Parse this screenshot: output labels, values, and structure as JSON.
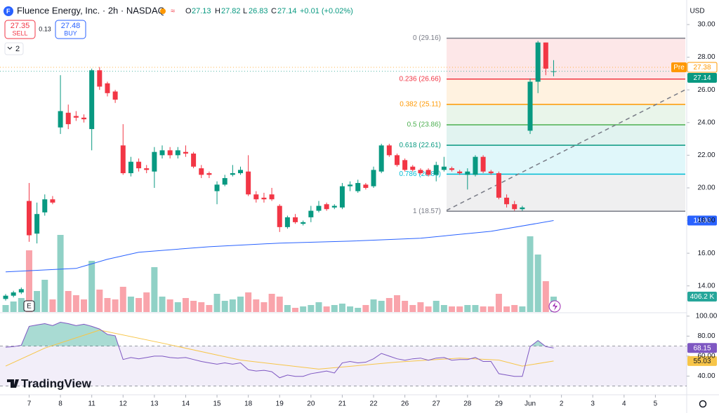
{
  "header": {
    "symbol": "Fluence Energy, Inc. · 2h · NASDAQ",
    "o": "O",
    "h": "H",
    "l": "L",
    "c": "C",
    "change": "+0.01 (+0.02%)",
    "sell_price": "27.35",
    "sell": "SELL",
    "spread": "0.13",
    "buy_price": "27.48",
    "buy": "BUY",
    "indicators": "2",
    "currency": "USD",
    "brand": "TradingView",
    "earnings": "E"
  },
  "chart_data": [
    {
      "type": "candlestick",
      "up_color": "#089981",
      "down_color": "#f23645",
      "x": [
        0,
        1,
        2,
        3,
        4,
        5,
        6,
        7,
        8,
        9,
        10,
        11,
        12,
        13,
        14,
        15,
        16,
        17,
        18,
        19,
        20,
        21,
        22,
        23,
        24,
        25,
        26,
        27,
        28,
        29,
        30,
        31,
        32,
        33,
        34,
        35,
        36,
        37,
        38,
        39,
        40,
        41,
        42,
        43,
        44,
        45,
        46,
        47,
        48,
        49,
        50,
        51,
        52,
        53,
        54,
        55,
        56,
        57,
        58,
        59,
        60,
        61,
        62,
        63,
        64,
        65,
        66,
        67,
        68,
        69,
        70
      ],
      "open": [
        13.2,
        13.4,
        13.6,
        19.2,
        17.2,
        18.5,
        19.3,
        23.7,
        24.6,
        24.4,
        24.3,
        23.6,
        27.2,
        26.4,
        25.9,
        22.6,
        20.9,
        21.6,
        21.2,
        21.0,
        22.0,
        22.3,
        22.0,
        22.2,
        22.1,
        21.2,
        20.9,
        19.8,
        20.2,
        20.8,
        20.9,
        21.0,
        19.6,
        19.4,
        19.6,
        18.9,
        17.6,
        18.2,
        17.8,
        18.2,
        18.6,
        19.0,
        18.8,
        18.8,
        20.1,
        19.8,
        20.2,
        20.1,
        21.0,
        22.6,
        22.0,
        21.7,
        21.3,
        21.1,
        21.1,
        20.8,
        21.1,
        21.2,
        21.0,
        20.8,
        20.8,
        21.9,
        21.0,
        20.9,
        19.4,
        19.0,
        18.7,
        23.5,
        26.5,
        28.9,
        27.13
      ],
      "high": [
        13.5,
        13.7,
        13.9,
        20.3,
        19.1,
        19.6,
        19.5,
        26.9,
        25.1,
        24.7,
        24.5,
        27.3,
        27.4,
        26.5,
        26.0,
        23.9,
        21.9,
        21.8,
        21.4,
        22.5,
        22.6,
        22.5,
        22.5,
        22.6,
        22.2,
        21.4,
        21.0,
        20.4,
        20.8,
        21.4,
        21.3,
        22.0,
        19.8,
        19.7,
        20.0,
        19.0,
        18.3,
        18.4,
        18.0,
        18.9,
        19.2,
        19.1,
        19.0,
        20.3,
        20.4,
        20.5,
        20.3,
        21.3,
        22.7,
        22.7,
        22.1,
        21.8,
        21.4,
        21.2,
        21.2,
        21.6,
        21.9,
        21.3,
        21.1,
        21.2,
        22.0,
        22.0,
        21.1,
        21.0,
        19.6,
        19.2,
        18.9,
        26.7,
        29.0,
        28.9,
        27.82
      ],
      "low": [
        13.1,
        13.3,
        13.5,
        16.7,
        16.6,
        18.3,
        19.0,
        23.3,
        23.6,
        24.1,
        24.0,
        22.3,
        26.0,
        25.6,
        25.2,
        20.8,
        20.7,
        21.0,
        20.9,
        20.0,
        21.8,
        21.8,
        21.8,
        21.9,
        21.2,
        20.6,
        20.6,
        19.0,
        20.1,
        20.7,
        20.8,
        19.5,
        19.1,
        19.1,
        19.2,
        17.3,
        17.5,
        17.8,
        17.7,
        17.9,
        18.5,
        18.6,
        18.7,
        18.7,
        19.8,
        19.7,
        19.9,
        20.0,
        20.9,
        21.9,
        21.3,
        21.0,
        21.0,
        20.8,
        20.7,
        20.4,
        21.0,
        21.0,
        20.8,
        19.9,
        20.7,
        20.9,
        20.8,
        19.3,
        18.8,
        18.6,
        18.6,
        23.3,
        25.8,
        26.9,
        26.83
      ],
      "close": [
        13.4,
        13.6,
        13.8,
        17.1,
        18.4,
        19.3,
        19.1,
        24.7,
        23.9,
        24.3,
        24.2,
        27.2,
        26.2,
        25.8,
        25.4,
        20.9,
        21.6,
        21.2,
        21.1,
        22.2,
        22.3,
        22.0,
        22.3,
        22.1,
        21.3,
        20.8,
        20.8,
        20.2,
        20.6,
        20.9,
        21.1,
        19.6,
        19.3,
        19.3,
        19.3,
        17.6,
        18.2,
        17.9,
        17.9,
        18.6,
        18.9,
        18.7,
        18.9,
        20.1,
        20.2,
        20.3,
        20.0,
        21.1,
        22.6,
        22.0,
        21.4,
        21.1,
        21.1,
        20.9,
        20.8,
        21.4,
        21.3,
        21.1,
        20.9,
        21.0,
        21.9,
        21.0,
        20.9,
        19.4,
        19.0,
        18.7,
        18.8,
        26.5,
        28.9,
        27.3,
        27.14
      ],
      "close_label": "27.14",
      "volume": {
        "ylim": [
          0,
          7715
        ],
        "color": "#26a69a",
        "values": [
          185,
          278,
          370,
          1628,
          555,
          851,
          333,
          2035,
          555,
          444,
          333,
          1351,
          592,
          370,
          333,
          666,
          407,
          370,
          518,
          1184,
          407,
          333,
          259,
          370,
          296,
          259,
          185,
          481,
          296,
          333,
          407,
          518,
          333,
          259,
          481,
          407,
          185,
          111,
          148,
          185,
          259,
          148,
          185,
          222,
          148,
          111,
          185,
          333,
          296,
          370,
          444,
          296,
          185,
          259,
          148,
          296,
          185,
          148,
          148,
          185,
          185,
          148,
          148,
          481,
          148,
          185,
          148,
          1998,
          1517,
          814,
          406.2
        ],
        "value_labels": [
          null,
          null,
          null,
          null,
          null,
          null,
          null,
          null,
          null,
          null,
          null,
          null,
          null,
          null,
          null,
          null,
          null,
          null,
          null,
          null,
          null,
          null,
          null,
          null,
          null,
          null,
          null,
          null,
          null,
          null,
          null,
          null,
          null,
          null,
          null,
          null,
          null,
          null,
          null,
          null,
          null,
          null,
          null,
          null,
          null,
          null,
          null,
          null,
          null,
          null,
          null,
          null,
          null,
          null,
          null,
          null,
          null,
          null,
          null,
          null,
          null,
          null,
          null,
          null,
          null,
          null,
          null,
          null,
          null,
          null,
          "406.2 K"
        ]
      },
      "ma": {
        "color": "#2962ff",
        "x": [
          0,
          9,
          13,
          17,
          26,
          35,
          44,
          53,
          62,
          70
        ],
        "values": [
          14.86,
          15.07,
          15.63,
          16.06,
          16.4,
          16.62,
          16.74,
          16.92,
          17.34,
          18
        ],
        "value_labels": [
          null,
          null,
          null,
          null,
          null,
          null,
          null,
          null,
          null,
          "18.00"
        ]
      },
      "pre_market": {
        "label": "Pre",
        "value": 27.38,
        "color": "#ff9800"
      },
      "fib": [
        {
          "value": 29.16,
          "label": "0 (29.16)",
          "color": "#787b86",
          "fill": "rgba(242,54,69,0.12)"
        },
        {
          "value": 26.66,
          "label": "0.236 (26.66)",
          "color": "#f23645",
          "fill": "rgba(255,152,0,0.12)"
        },
        {
          "value": 25.11,
          "label": "0.382 (25.11)",
          "color": "#ff9800",
          "fill": "rgba(76,175,80,0.12)"
        },
        {
          "value": 23.86,
          "label": "0.5 (23.86)",
          "color": "#4caf50",
          "fill": "rgba(8,153,129,0.12)"
        },
        {
          "value": 22.61,
          "label": "0.618 (22.61)",
          "color": "#089981",
          "fill": "rgba(0,188,212,0.12)"
        },
        {
          "value": 20.84,
          "label": "0.786 (20.84)",
          "color": "#00bcd4",
          "fill": "rgba(120,123,134,0.12)"
        },
        {
          "value": 18.57,
          "label": "1 (18.57)",
          "color": "#787b86",
          "fill": null
        }
      ],
      "xlim": [
        -0.72,
        87
      ],
      "ylim": [
        12.4,
        30.3
      ],
      "yticks": [
        {
          "value": 30,
          "label": "30.00"
        },
        {
          "value": 28,
          "label": "28.00"
        },
        {
          "value": 26,
          "label": "26.00"
        },
        {
          "value": 24,
          "label": "24.00"
        },
        {
          "value": 22,
          "label": "22.00"
        },
        {
          "value": 20,
          "label": "20.00"
        },
        {
          "value": 18,
          "label": "18.00"
        },
        {
          "value": 16,
          "label": "16.00"
        },
        {
          "value": 14,
          "label": "14.00"
        }
      ],
      "xticks": [
        {
          "value": 3,
          "label": "7"
        },
        {
          "value": 7,
          "label": "8"
        },
        {
          "value": 11,
          "label": "11"
        },
        {
          "value": 15,
          "label": "12"
        },
        {
          "value": 19,
          "label": "13"
        },
        {
          "value": 23,
          "label": "14"
        },
        {
          "value": 27,
          "label": "15"
        },
        {
          "value": 31,
          "label": "18"
        },
        {
          "value": 35,
          "label": "19"
        },
        {
          "value": 39,
          "label": "20"
        },
        {
          "value": 43,
          "label": "21"
        },
        {
          "value": 47,
          "label": "22"
        },
        {
          "value": 51,
          "label": "26"
        },
        {
          "value": 55,
          "label": "27"
        },
        {
          "value": 59,
          "label": "28"
        },
        {
          "value": 63,
          "label": "29"
        },
        {
          "value": 67,
          "label": "Jun"
        },
        {
          "value": 71,
          "label": "2"
        },
        {
          "value": 75,
          "label": "3"
        },
        {
          "value": 79,
          "label": "4"
        },
        {
          "value": 83,
          "label": "5"
        }
      ]
    },
    {
      "type": "line",
      "ylim": [
        23.4,
        102.7
      ],
      "bands": [
        70,
        30
      ],
      "band_fill": "rgba(126,87,194,0.1)",
      "overbought_fill": "rgba(8,153,129,0.35)",
      "yticks": [
        {
          "value": 100,
          "label": "100.00"
        },
        {
          "value": 80,
          "label": "80.00"
        },
        {
          "value": 60,
          "label": "60.00"
        },
        {
          "value": 40,
          "label": "40.00"
        }
      ],
      "series": [
        {
          "color": "#7e57c2",
          "values": [
            68.8,
            69.5,
            70.8,
            89.8,
            91.2,
            92.5,
            90.5,
            93.9,
            92.5,
            90.5,
            91.9,
            89.8,
            87.1,
            81.7,
            80.3,
            56.6,
            58.6,
            57.3,
            58.6,
            60.0,
            60.0,
            58.6,
            58.0,
            58.6,
            56.6,
            54.6,
            53.2,
            51.9,
            53.2,
            51.9,
            53.2,
            46.4,
            45.1,
            45.8,
            44.4,
            38.3,
            41.0,
            39.7,
            39.7,
            42.4,
            43.7,
            45.1,
            43.1,
            53.2,
            54.6,
            53.2,
            53.9,
            57.3,
            62.7,
            60.0,
            57.3,
            55.9,
            57.3,
            58.0,
            55.9,
            58.0,
            58.6,
            55.9,
            56.6,
            56.6,
            58.6,
            54.6,
            54.6,
            42.4,
            41.0,
            39.7,
            39.7,
            69.5,
            75.6,
            69.5,
            68.15
          ]
        },
        {
          "color": "#f7c548",
          "x": [
            0,
            5,
            12,
            20,
            30,
            40,
            50,
            58,
            63,
            66,
            70
          ],
          "values": [
            50,
            68,
            86,
            73,
            56,
            47,
            54,
            58,
            56,
            50,
            55.03
          ]
        }
      ]
    }
  ]
}
